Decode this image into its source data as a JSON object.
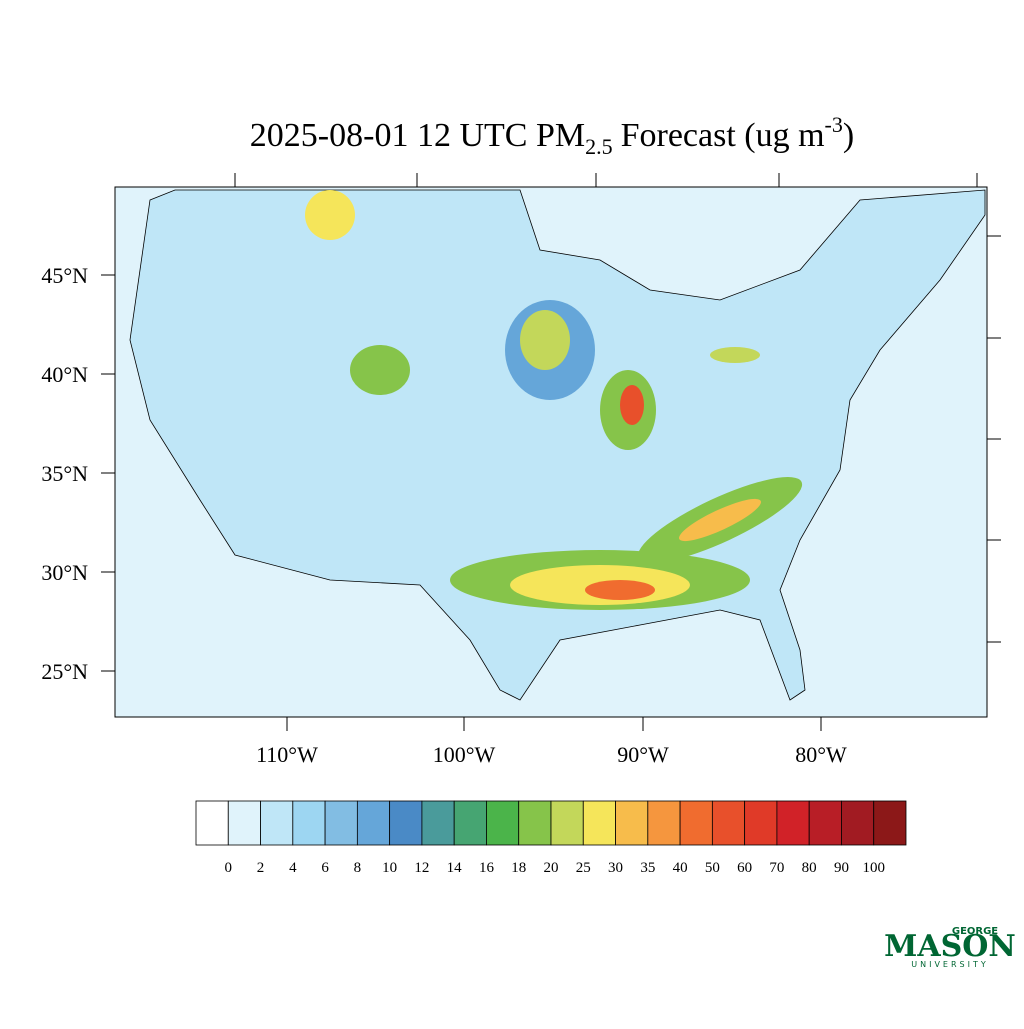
{
  "title": {
    "main": "2025-08-01 12 UTC PM",
    "subscript": "2.5",
    "middle": "Forecast (ug m",
    "superscript": "-3",
    "end": ")"
  },
  "map": {
    "lat_labels": [
      "45°N",
      "40°N",
      "35°N",
      "30°N",
      "25°N"
    ],
    "lon_labels": [
      "110°W",
      "100°W",
      "90°W",
      "80°W"
    ]
  },
  "colorbar": {
    "colors": [
      "#ffffff",
      "#e0f3fb",
      "#bfe6f7",
      "#9dd6f2",
      "#82bde3",
      "#65a6d9",
      "#4a8ac6",
      "#4a9b9b",
      "#46a572",
      "#4bb44a",
      "#86c44a",
      "#c3d75a",
      "#f5e55a",
      "#f7bc4b",
      "#f5963e",
      "#f06c2f",
      "#e8502b",
      "#e03a28",
      "#d12228",
      "#b81e26",
      "#a11b22",
      "#8c1818"
    ],
    "labels": [
      0,
      2,
      4,
      6,
      8,
      10,
      12,
      14,
      16,
      18,
      20,
      25,
      30,
      35,
      40,
      50,
      60,
      70,
      80,
      90,
      100
    ]
  },
  "logo": {
    "top": "GEORGE",
    "main": "MASON",
    "bottom": "UNIVERSITY"
  }
}
